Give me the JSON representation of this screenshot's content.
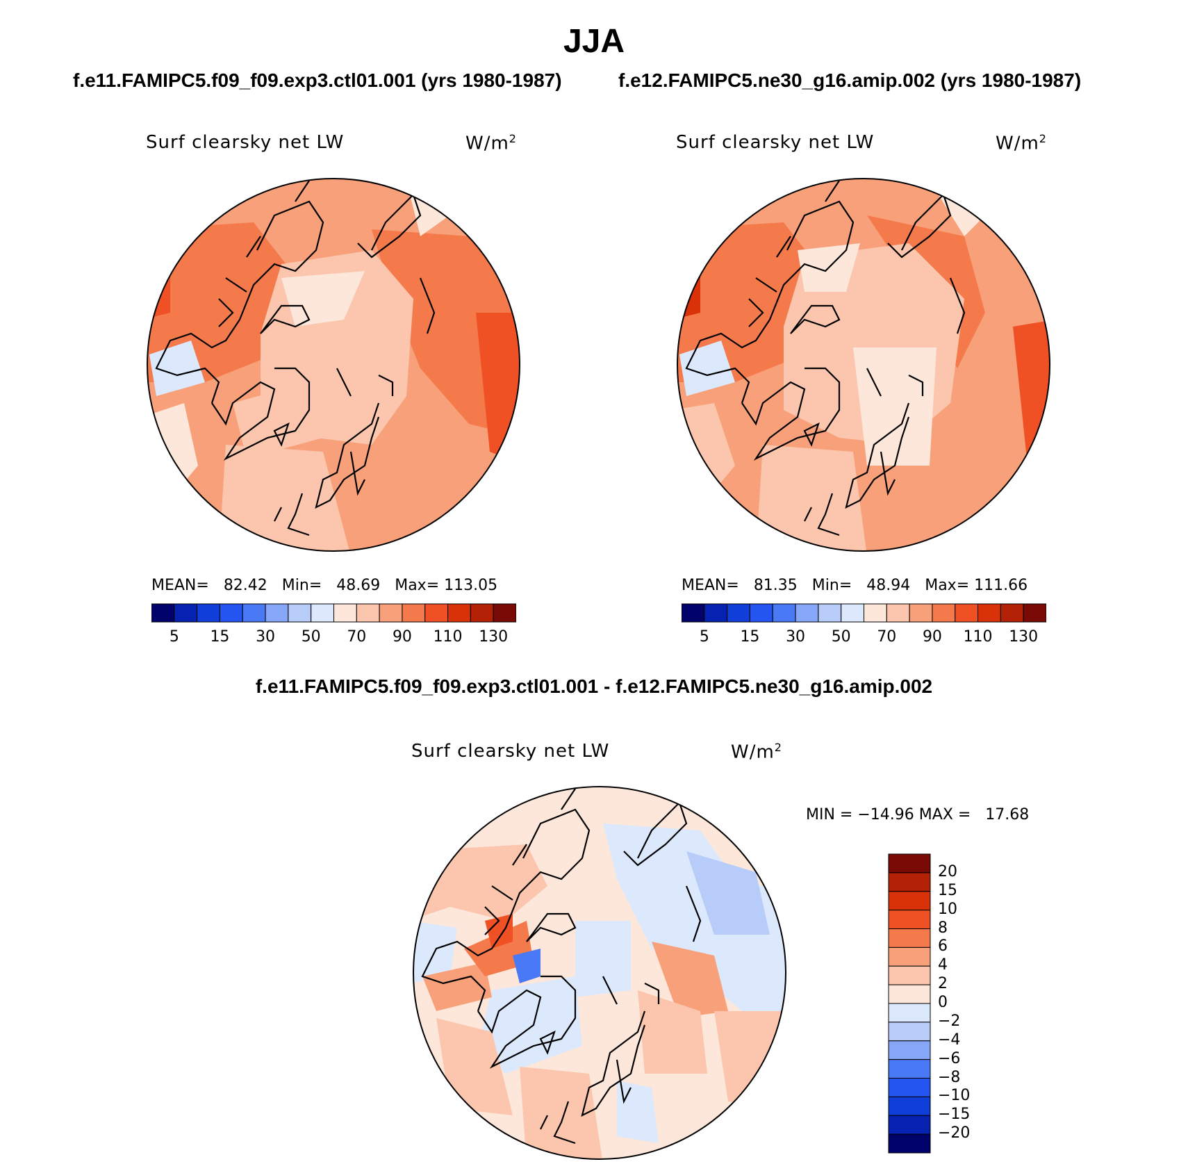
{
  "title": "JJA",
  "cases": {
    "left": "f.e11.FAMIPC5.f09_f09.exp3.ctl01.001 (yrs 1980-1987)",
    "right": "f.e12.FAMIPC5.ne30_g16.amip.002 (yrs 1980-1987)",
    "diff": "f.e11.FAMIPC5.f09_f09.exp3.ctl01.001 - f.e12.FAMIPC5.ne30_g16.amip.002"
  },
  "panel_labels": {
    "variable": "Surf clearsky net LW",
    "units": "W/m",
    "units_sup": "2"
  },
  "panels": [
    {
      "mean_label": "MEAN=",
      "mean": "82.42",
      "min_label": "Min=",
      "min": "48.69",
      "max_label": "Max=",
      "max": "113.05"
    },
    {
      "mean_label": "MEAN=",
      "mean": "81.35",
      "min_label": "Min=",
      "min": "48.94",
      "max_label": "Max=",
      "max": "111.66"
    }
  ],
  "diff_stats": {
    "min_label": "MIN =",
    "min": "−14.96",
    "max_label": "MAX =",
    "max": "17.68"
  },
  "colorbar_main": {
    "ticks": [
      "5",
      "15",
      "30",
      "50",
      "70",
      "90",
      "110",
      "130"
    ],
    "colors": [
      "#02026b",
      "#0622b0",
      "#0f3fd8",
      "#2455f0",
      "#4a79f5",
      "#86a6f7",
      "#b8ccfa",
      "#dce8fc",
      "#fde7da",
      "#fbc6ad",
      "#f8a079",
      "#f47a4b",
      "#ef5024",
      "#d93208",
      "#b32106",
      "#7a0a05"
    ]
  },
  "colorbar_diff": {
    "labels": [
      "20",
      "15",
      "10",
      "8",
      "6",
      "4",
      "2",
      "0",
      "−2",
      "−4",
      "−6",
      "−8",
      "−10",
      "−15",
      "−20"
    ],
    "colors": [
      "#7a0a05",
      "#b32106",
      "#d93208",
      "#ef5024",
      "#f47a4b",
      "#f8a079",
      "#fbc6ad",
      "#fde7da",
      "#dce8fc",
      "#b8ccfa",
      "#86a6f7",
      "#4a79f5",
      "#2455f0",
      "#0f3fd8",
      "#0622b0",
      "#02026b"
    ]
  },
  "chart_data": {
    "type": "heatmap",
    "projection": "north polar stereographic",
    "season": "JJA",
    "variable": "Surf clearsky net LW",
    "units": "W/m2",
    "panels": [
      {
        "case": "f.e11.FAMIPC5.f09_f09.exp3.ctl01.001",
        "mean": 82.42,
        "min": 48.69,
        "max": 113.05
      },
      {
        "case": "f.e12.FAMIPC5.ne30_g16.amip.002",
        "mean": 81.35,
        "min": 48.94,
        "max": 111.66
      },
      {
        "case": "difference",
        "min": -14.96,
        "max": 17.68
      }
    ],
    "levels_main": [
      5,
      10,
      15,
      20,
      30,
      40,
      50,
      60,
      70,
      80,
      90,
      100,
      110,
      120,
      130
    ],
    "levels_diff": [
      -20,
      -15,
      -10,
      -8,
      -6,
      -4,
      -2,
      0,
      2,
      4,
      6,
      8,
      10,
      15,
      20
    ]
  }
}
